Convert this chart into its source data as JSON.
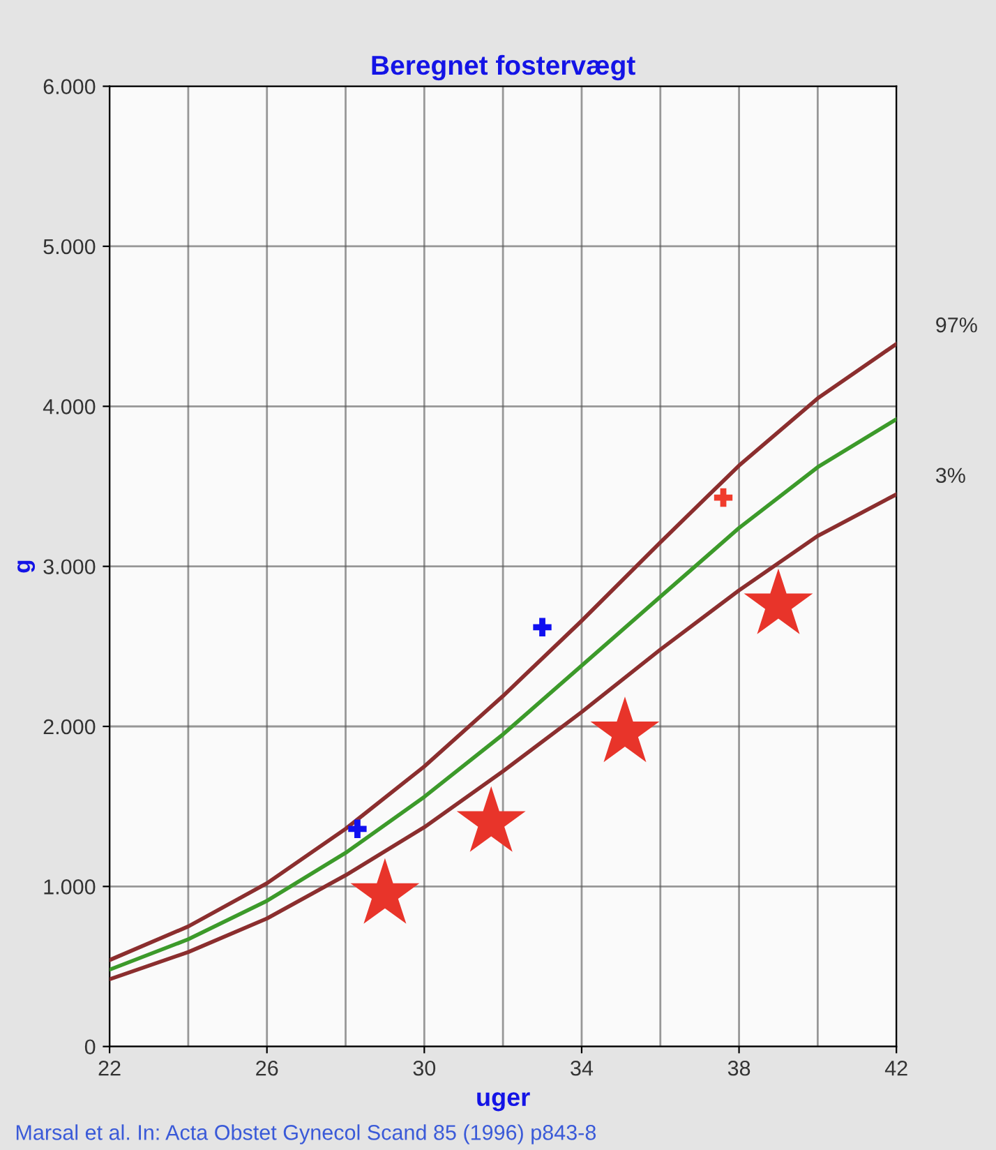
{
  "chart_data": {
    "type": "line",
    "title": "Beregnet fostervægt",
    "xlabel": "uger",
    "ylabel": "g",
    "annotations": [
      "Marsal et al. In: Acta Obstet Gynecol Scand 85 (1996) p843-8"
    ],
    "xlim": [
      22,
      42
    ],
    "xticks": [
      22,
      26,
      30,
      34,
      38,
      42
    ],
    "ylim": [
      0,
      6000
    ],
    "yticks": [
      0,
      {
        "value": 1000,
        "label": "1.000"
      },
      {
        "value": 2000,
        "label": "2.000"
      },
      {
        "value": 3000,
        "label": "3.000"
      },
      {
        "value": 4000,
        "label": "4.000"
      },
      {
        "value": 5000,
        "label": "5.000"
      },
      {
        "value": 6000,
        "label": "6.000"
      }
    ],
    "grid": true,
    "legend": false,
    "series": [
      {
        "name": "97%",
        "color": "#8b2e2e",
        "marker": "none",
        "x": [
          22,
          24,
          26,
          28,
          30,
          32,
          34,
          36,
          38,
          40,
          42
        ],
        "values": [
          540,
          750,
          1020,
          1360,
          1750,
          2190,
          2660,
          3150,
          3630,
          4050,
          4390
        ]
      },
      {
        "color": "#3c9a2a",
        "marker": "none",
        "x": [
          22,
          24,
          26,
          28,
          30,
          32,
          34,
          36,
          38,
          40,
          42
        ],
        "values": [
          480,
          670,
          910,
          1210,
          1560,
          1950,
          2380,
          2810,
          3240,
          3620,
          3920
        ]
      },
      {
        "name": "3%",
        "color": "#8b2e2e",
        "marker": "none",
        "x": [
          22,
          24,
          26,
          28,
          30,
          32,
          34,
          36,
          38,
          40,
          42
        ],
        "values": [
          420,
          590,
          800,
          1070,
          1370,
          1720,
          2090,
          2480,
          2850,
          3190,
          3450
        ]
      },
      {
        "type": "scatter",
        "color": "#1010f0",
        "marker": "cross",
        "x": [
          28.3,
          33.0
        ],
        "values": [
          1360,
          2620
        ]
      },
      {
        "type": "scatter",
        "color": "#f03c2c",
        "marker": "cross",
        "x": [
          37.6
        ],
        "values": [
          3430
        ]
      },
      {
        "type": "scatter",
        "color": "#e8342a",
        "marker": "star",
        "x": [
          29.0,
          31.7,
          35.1,
          39.0
        ],
        "values": [
          950,
          1400,
          1960,
          2760
        ]
      }
    ]
  }
}
